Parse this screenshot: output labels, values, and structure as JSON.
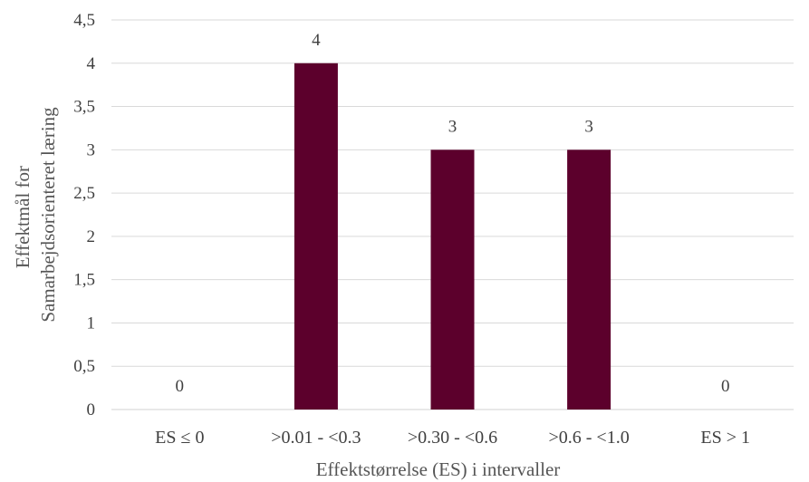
{
  "chart_data": {
    "type": "bar",
    "categories": [
      "ES ≤ 0",
      ">0.01 - <0.3",
      ">0.30 - <0.6",
      ">0.6 - <1.0",
      "ES > 1"
    ],
    "values": [
      0,
      4,
      3,
      3,
      0
    ],
    "data_labels": [
      "0",
      "4",
      "3",
      "3",
      "0"
    ],
    "title": "",
    "xlabel": "Effektstørrelse (ES) i intervaller",
    "ylabel_lines": [
      "Effektmål for",
      "Samarbejdsorienteret læring"
    ],
    "ylim": [
      0,
      4.5
    ],
    "yticks": [
      0,
      0.5,
      1,
      1.5,
      2,
      2.5,
      3,
      3.5,
      4,
      4.5
    ],
    "ytick_labels": [
      "0",
      "0,5",
      "1",
      "1,5",
      "2",
      "2,5",
      "3",
      "3,5",
      "4",
      "4,5"
    ],
    "grid": true,
    "legend": "none",
    "bar_color": "#5c002c"
  }
}
